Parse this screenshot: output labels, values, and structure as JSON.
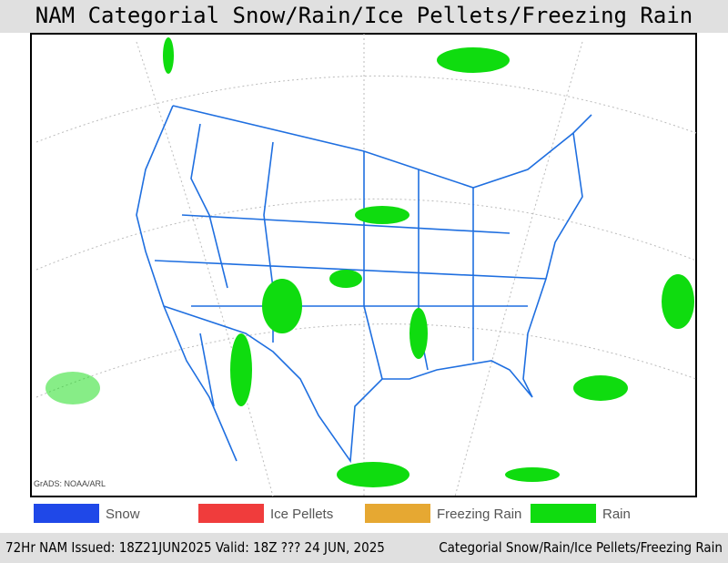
{
  "title": "NAM Categorial Snow/Rain/Ice Pellets/Freezing Rain",
  "credit": "GrADS: NOAA/ARL",
  "legend": [
    {
      "label": "Snow",
      "color": "#1f48e8"
    },
    {
      "label": "Ice Pellets",
      "color": "#f03c3c"
    },
    {
      "label": "Freezing Rain",
      "color": "#e6a832"
    },
    {
      "label": "Rain",
      "color": "#0fdc0f"
    }
  ],
  "footer": {
    "left": "72Hr NAM Issued: 18Z21JUN2025 Valid: 18Z ??? 24 JUN, 2025",
    "right": "Categorial Snow/Rain/Ice Pellets/Freezing Rain"
  }
}
